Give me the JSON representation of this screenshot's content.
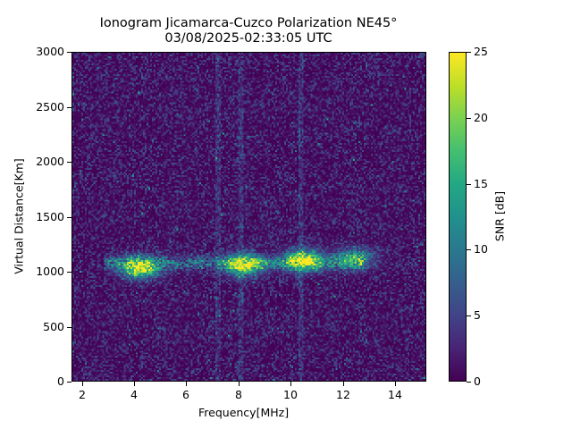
{
  "chart_data": {
    "type": "heatmap",
    "title": "Ionogram Jicamarca-Cuzco Polarization NE45°",
    "subtitle": "03/08/2025-02:33:05 UTC",
    "xlabel": "Frequency[MHz]",
    "ylabel": "Virtual Distance[Km]",
    "xlim": [
      1.6,
      15.2
    ],
    "ylim": [
      0,
      3000
    ],
    "x_ticks": [
      2,
      4,
      6,
      8,
      10,
      12,
      14
    ],
    "y_ticks": [
      0,
      500,
      1000,
      1500,
      2000,
      2500,
      3000
    ],
    "colorbar": {
      "label": "SNR [dB]",
      "range": [
        0,
        25
      ],
      "ticks": [
        0,
        5,
        10,
        15,
        20,
        25
      ],
      "colormap": "viridis"
    },
    "grid": false,
    "features": [
      {
        "description": "main echo trace",
        "freq_range_mhz": [
          2.8,
          12.8
        ],
        "distance_km": [
          950,
          1200
        ]
      },
      {
        "description": "strong echo cluster",
        "center_freq_mhz": 4.2,
        "center_distance_km": 1030,
        "peak_snr_db": 25
      },
      {
        "description": "strong echo cluster",
        "center_freq_mhz": 8.2,
        "center_distance_km": 1060,
        "peak_snr_db": 25
      },
      {
        "description": "strong echo cluster",
        "center_freq_mhz": 10.5,
        "center_distance_km": 1100,
        "peak_snr_db": 25
      },
      {
        "description": "weak echo",
        "center_freq_mhz": 12.5,
        "center_distance_km": 1120,
        "peak_snr_db": 15
      },
      {
        "description": "vertical interference bands",
        "freq_mhz": [
          7.2,
          8.1,
          10.4
        ]
      },
      {
        "description": "background noise",
        "snr_db": [
          0,
          5
        ]
      }
    ]
  },
  "title": {
    "line1": "Ionogram Jicamarca-Cuzco Polarization NE45°",
    "line2": "03/08/2025-02:33:05 UTC"
  },
  "colors": {
    "viridis_low": "#440154",
    "viridis_high": "#fde725"
  }
}
